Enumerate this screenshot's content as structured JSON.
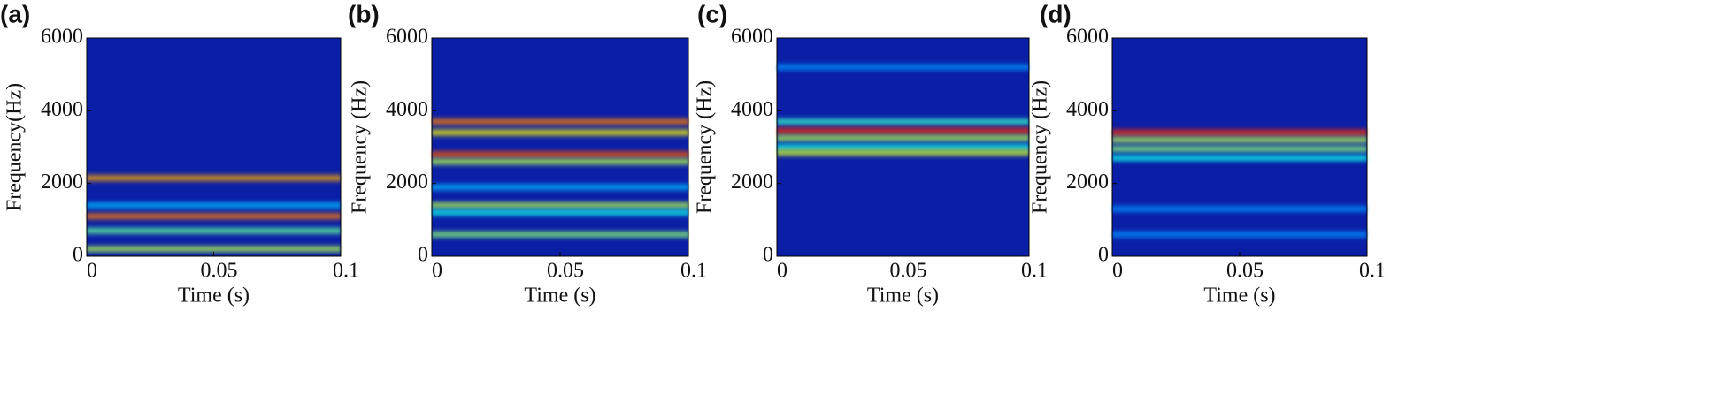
{
  "chart_data": [
    {
      "type": "spectrogram",
      "panel": "(a)",
      "xlabel": "Time (s)",
      "ylabel": "Frequency(Hz)",
      "xlim": [
        0,
        0.1
      ],
      "xticks": [
        0,
        0.05,
        0.1
      ],
      "ylim": [
        0,
        6000
      ],
      "yticks": [
        0,
        2000,
        4000,
        6000
      ],
      "ridges": {
        "frequencies": [
          2150,
          1100,
          1400,
          700,
          200
        ],
        "intensities": [
          0.7,
          0.75,
          0.2,
          0.4,
          0.5
        ]
      }
    },
    {
      "type": "spectrogram",
      "panel": "(b)",
      "xlabel": "Time (s)",
      "ylabel": "Frequency (Hz)",
      "xlim": [
        0,
        0.1
      ],
      "xticks": [
        0,
        0.05,
        0.1
      ],
      "ylim": [
        0,
        6000
      ],
      "yticks": [
        0,
        2000,
        4000,
        6000
      ],
      "ridges": {
        "frequencies": [
          3700,
          3400,
          2800,
          2600,
          1900,
          1400,
          1200,
          600
        ],
        "intensities": [
          0.75,
          0.6,
          0.8,
          0.5,
          0.2,
          0.5,
          0.3,
          0.45
        ]
      }
    },
    {
      "type": "spectrogram",
      "panel": "(c)",
      "xlabel": "Time (s)",
      "ylabel": "Frequency (Hz)",
      "xlim": [
        0,
        0.1
      ],
      "xticks": [
        0,
        0.05,
        0.1
      ],
      "ylim": [
        0,
        6000
      ],
      "yticks": [
        0,
        2000,
        4000,
        6000
      ],
      "ridges": {
        "frequencies": [
          5200,
          3700,
          3450,
          3250,
          3000,
          2850
        ],
        "intensities": [
          0.15,
          0.35,
          0.85,
          0.5,
          0.3,
          0.55
        ]
      }
    },
    {
      "type": "spectrogram",
      "panel": "(d)",
      "xlabel": "Time (s)",
      "ylabel": "Frequency (Hz)",
      "xlim": [
        0,
        0.1
      ],
      "xticks": [
        0,
        0.05,
        0.1
      ],
      "ylim": [
        0,
        6000
      ],
      "yticks": [
        0,
        2000,
        4000,
        6000
      ],
      "ridges": {
        "frequencies": [
          3400,
          3200,
          2950,
          2700,
          1300,
          600
        ],
        "intensities": [
          0.85,
          0.5,
          0.45,
          0.3,
          0.15,
          0.15
        ]
      }
    }
  ]
}
